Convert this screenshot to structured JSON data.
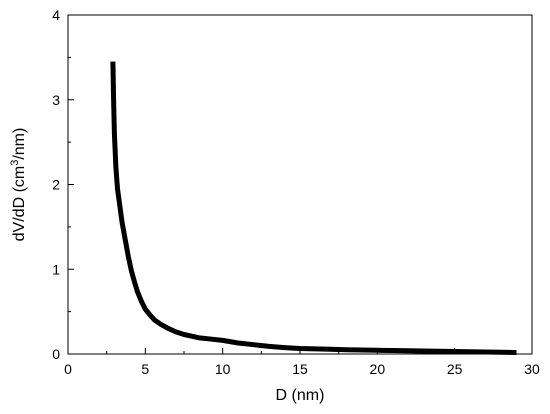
{
  "chart_data": {
    "type": "line",
    "title": "",
    "xlabel": "D (nm)",
    "ylabel": {
      "before": "dV/dD (cm",
      "sup": "3",
      "after": "/nm)"
    },
    "xlim": [
      0,
      30
    ],
    "ylim": [
      0,
      4
    ],
    "x_ticks": [
      "0",
      "5",
      "10",
      "15",
      "20",
      "25",
      "30"
    ],
    "y_ticks": [
      "0",
      "1",
      "2",
      "3",
      "4"
    ],
    "grid": false,
    "legend": "none",
    "series": [
      {
        "color": "#000000",
        "points": [
          [
            2.9,
            3.45
          ],
          [
            2.95,
            3.0
          ],
          [
            3.0,
            2.6
          ],
          [
            3.1,
            2.2
          ],
          [
            3.2,
            1.95
          ],
          [
            3.35,
            1.75
          ],
          [
            3.5,
            1.55
          ],
          [
            3.7,
            1.35
          ],
          [
            3.9,
            1.15
          ],
          [
            4.1,
            0.98
          ],
          [
            4.3,
            0.85
          ],
          [
            4.5,
            0.73
          ],
          [
            4.75,
            0.62
          ],
          [
            5.0,
            0.53
          ],
          [
            5.3,
            0.46
          ],
          [
            5.6,
            0.4
          ],
          [
            6.0,
            0.35
          ],
          [
            6.5,
            0.3
          ],
          [
            7.0,
            0.26
          ],
          [
            7.5,
            0.23
          ],
          [
            8.0,
            0.21
          ],
          [
            8.5,
            0.19
          ],
          [
            9.0,
            0.18
          ],
          [
            10.0,
            0.16
          ],
          [
            11.0,
            0.13
          ],
          [
            12.0,
            0.11
          ],
          [
            13.0,
            0.09
          ],
          [
            14.0,
            0.075
          ],
          [
            15.0,
            0.065
          ],
          [
            16.0,
            0.06
          ],
          [
            17.0,
            0.055
          ],
          [
            18.0,
            0.05
          ],
          [
            19.0,
            0.047
          ],
          [
            20.0,
            0.044
          ],
          [
            21.0,
            0.041
          ],
          [
            22.0,
            0.038
          ],
          [
            23.0,
            0.035
          ],
          [
            24.0,
            0.032
          ],
          [
            25.0,
            0.03
          ],
          [
            26.0,
            0.027
          ],
          [
            27.0,
            0.024
          ],
          [
            28.0,
            0.021
          ],
          [
            29.0,
            0.018
          ]
        ]
      }
    ]
  }
}
